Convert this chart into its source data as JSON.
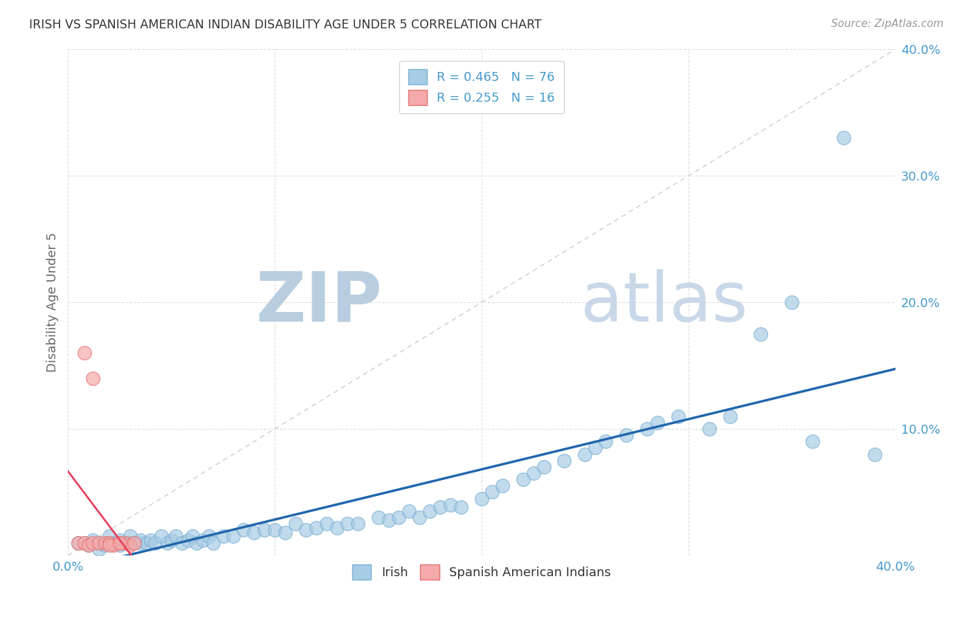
{
  "title": "IRISH VS SPANISH AMERICAN INDIAN DISABILITY AGE UNDER 5 CORRELATION CHART",
  "source": "Source: ZipAtlas.com",
  "ylabel": "Disability Age Under 5",
  "xlim": [
    0.0,
    0.4
  ],
  "ylim": [
    0.0,
    0.4
  ],
  "xtick_vals": [
    0.0,
    0.1,
    0.2,
    0.3,
    0.4
  ],
  "ytick_vals": [
    0.0,
    0.1,
    0.2,
    0.3,
    0.4
  ],
  "irish_color": "#a8cce4",
  "irish_edge_color": "#7ab0d4",
  "spanish_color": "#f4aaaa",
  "spanish_edge_color": "#e87070",
  "irish_R": 0.465,
  "irish_N": 76,
  "spanish_R": 0.255,
  "spanish_N": 16,
  "diagonal_color": "#cccccc",
  "irish_line_color": "#2166ac",
  "spanish_line_color": "#e8405a",
  "background_color": "#ffffff",
  "grid_color": "#dddddd",
  "title_color": "#333333",
  "axis_label_color": "#666666",
  "tick_color": "#4499cc",
  "watermark_zip_color": "#c5d8e8",
  "watermark_atlas_color": "#b8cfe0",
  "legend_patch_irish_color": "#a8cce4",
  "legend_patch_spanish_color": "#f4aaaa",
  "irish_scatter_x": [
    0.005,
    0.008,
    0.01,
    0.012,
    0.015,
    0.015,
    0.018,
    0.02,
    0.02,
    0.022,
    0.025,
    0.025,
    0.028,
    0.03,
    0.03,
    0.032,
    0.035,
    0.035,
    0.038,
    0.04,
    0.042,
    0.045,
    0.048,
    0.05,
    0.052,
    0.055,
    0.058,
    0.06,
    0.062,
    0.065,
    0.068,
    0.07,
    0.075,
    0.08,
    0.085,
    0.09,
    0.095,
    0.1,
    0.105,
    0.11,
    0.115,
    0.12,
    0.125,
    0.13,
    0.135,
    0.14,
    0.15,
    0.155,
    0.16,
    0.165,
    0.17,
    0.175,
    0.18,
    0.185,
    0.19,
    0.2,
    0.205,
    0.21,
    0.22,
    0.225,
    0.23,
    0.24,
    0.25,
    0.255,
    0.26,
    0.27,
    0.28,
    0.285,
    0.295,
    0.31,
    0.32,
    0.335,
    0.35,
    0.36,
    0.375,
    0.39
  ],
  "irish_scatter_y": [
    0.01,
    0.01,
    0.008,
    0.012,
    0.005,
    0.01,
    0.008,
    0.01,
    0.015,
    0.01,
    0.008,
    0.012,
    0.01,
    0.01,
    0.015,
    0.01,
    0.01,
    0.012,
    0.01,
    0.012,
    0.01,
    0.015,
    0.01,
    0.012,
    0.015,
    0.01,
    0.012,
    0.015,
    0.01,
    0.012,
    0.015,
    0.01,
    0.015,
    0.015,
    0.02,
    0.018,
    0.02,
    0.02,
    0.018,
    0.025,
    0.02,
    0.022,
    0.025,
    0.022,
    0.025,
    0.025,
    0.03,
    0.028,
    0.03,
    0.035,
    0.03,
    0.035,
    0.038,
    0.04,
    0.038,
    0.045,
    0.05,
    0.055,
    0.06,
    0.065,
    0.07,
    0.075,
    0.08,
    0.085,
    0.09,
    0.095,
    0.1,
    0.105,
    0.11,
    0.1,
    0.11,
    0.175,
    0.2,
    0.09,
    0.33,
    0.08
  ],
  "spanish_scatter_x": [
    0.005,
    0.008,
    0.01,
    0.012,
    0.015,
    0.018,
    0.02,
    0.022,
    0.025,
    0.028,
    0.03,
    0.032,
    0.008,
    0.012,
    0.02,
    0.025
  ],
  "spanish_scatter_y": [
    0.01,
    0.01,
    0.008,
    0.01,
    0.01,
    0.01,
    0.01,
    0.008,
    0.01,
    0.01,
    0.008,
    0.01,
    0.16,
    0.14,
    0.008,
    0.01
  ]
}
